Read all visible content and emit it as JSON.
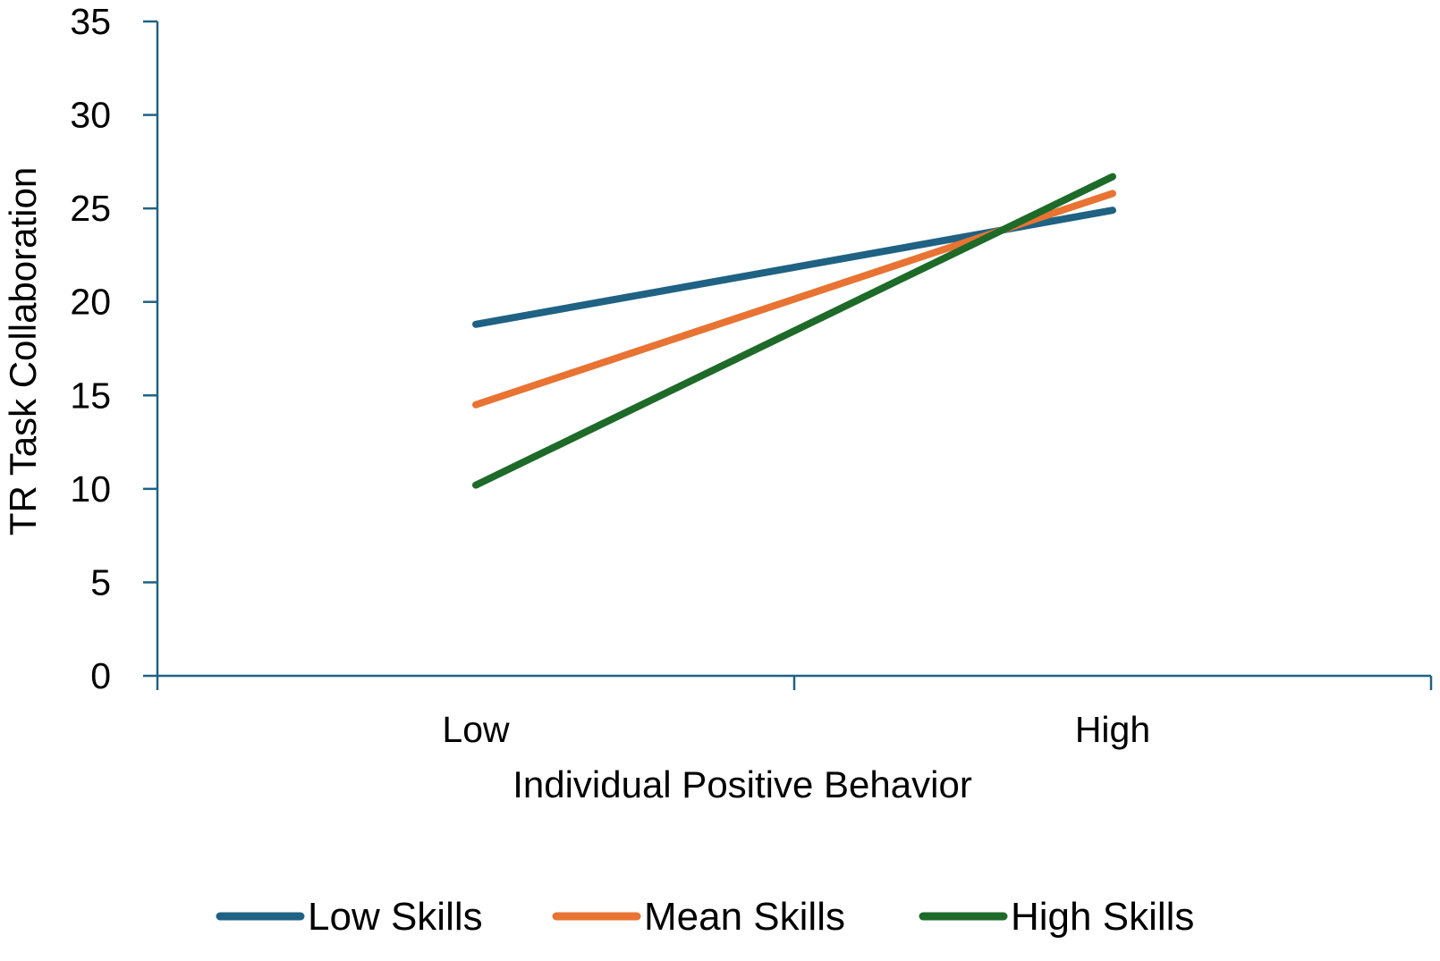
{
  "chart_data": {
    "type": "line",
    "title": "",
    "xlabel": "Individual Positive Behavior",
    "ylabel": "TR Task Collaboration",
    "categories": [
      "Low",
      "High"
    ],
    "ylim": [
      0,
      35
    ],
    "yticks": [
      0,
      5,
      10,
      15,
      20,
      25,
      30,
      35
    ],
    "grid": false,
    "legend_position": "bottom",
    "series": [
      {
        "name": "Low Skills",
        "color": "#1f6283",
        "values": [
          18.8,
          24.9
        ]
      },
      {
        "name": "Mean Skills",
        "color": "#e87333",
        "values": [
          14.5,
          25.8
        ]
      },
      {
        "name": "High Skills",
        "color": "#1e6a29",
        "values": [
          10.2,
          26.7
        ]
      }
    ],
    "axis_color": "#1f6283"
  }
}
